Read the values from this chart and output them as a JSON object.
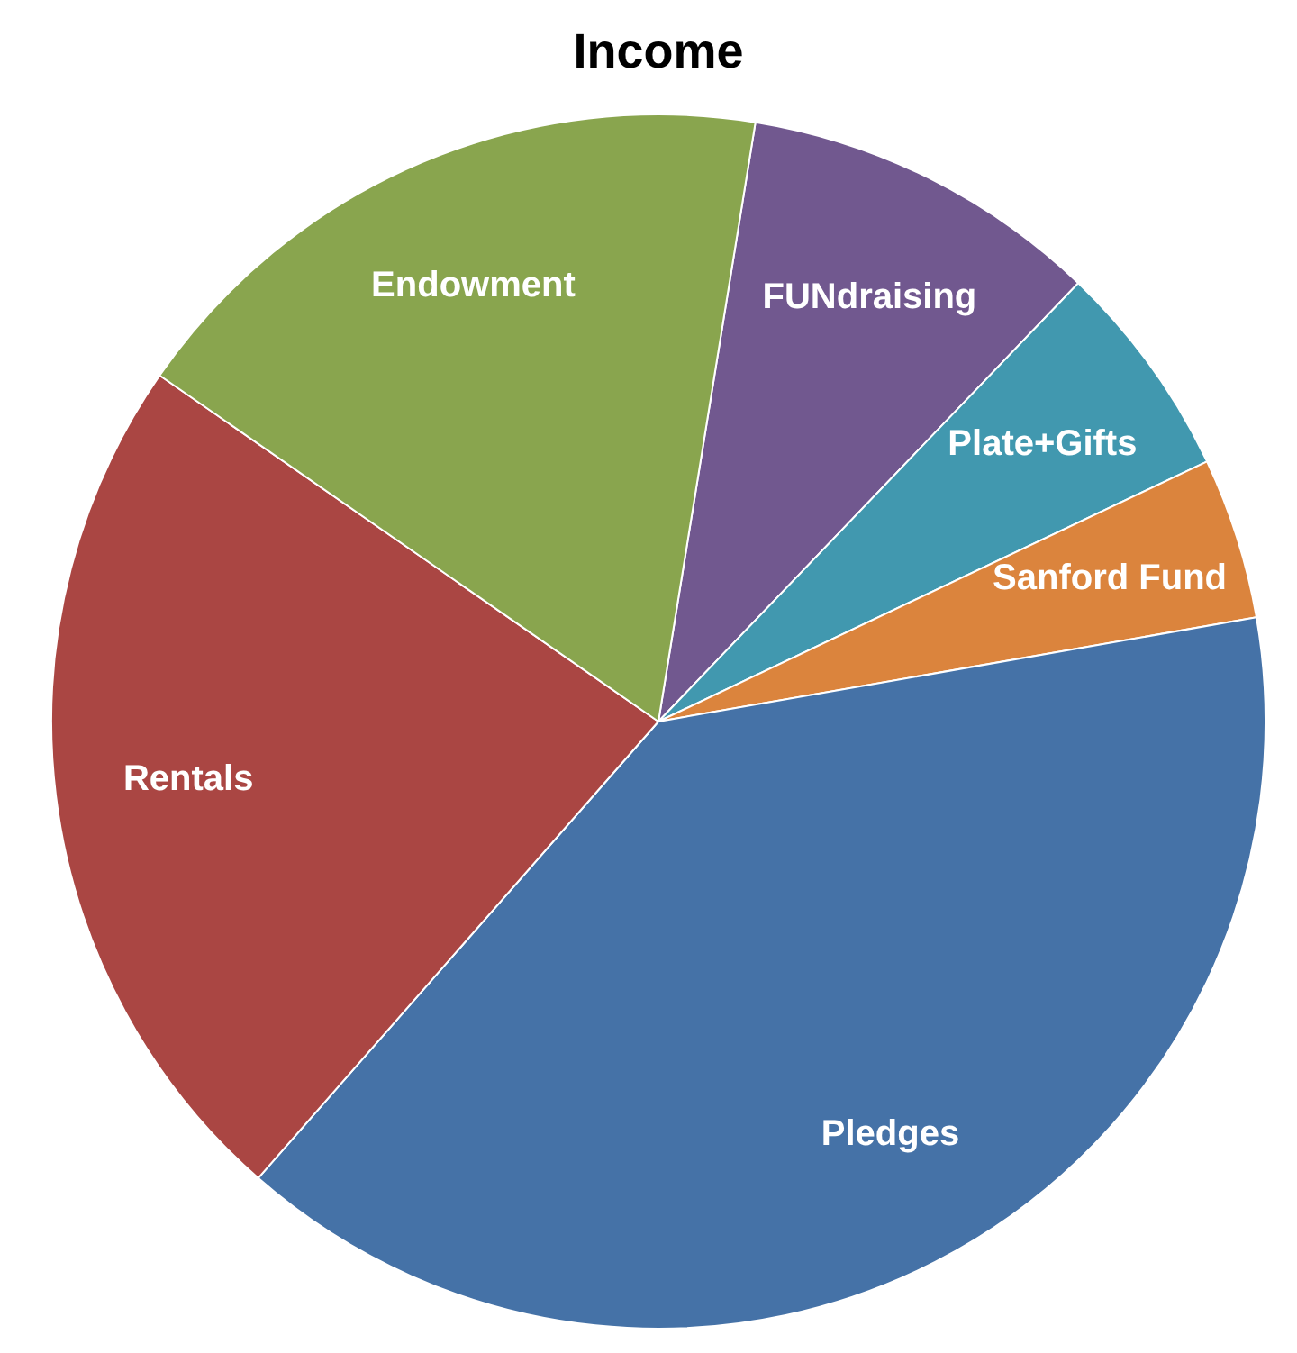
{
  "chart_data": {
    "type": "pie",
    "title": "Income",
    "categories": [
      "FUNdraising",
      "Plate+Gifts",
      "Sanford Fund",
      "Pledges",
      "Rentals",
      "Endowment"
    ],
    "values": [
      9.6,
      5.8,
      4.3,
      39.2,
      23.2,
      17.9
    ],
    "colors": [
      "#71588f",
      "#4198af",
      "#db843d",
      "#4572a7",
      "#aa4643",
      "#89a54e"
    ]
  }
}
